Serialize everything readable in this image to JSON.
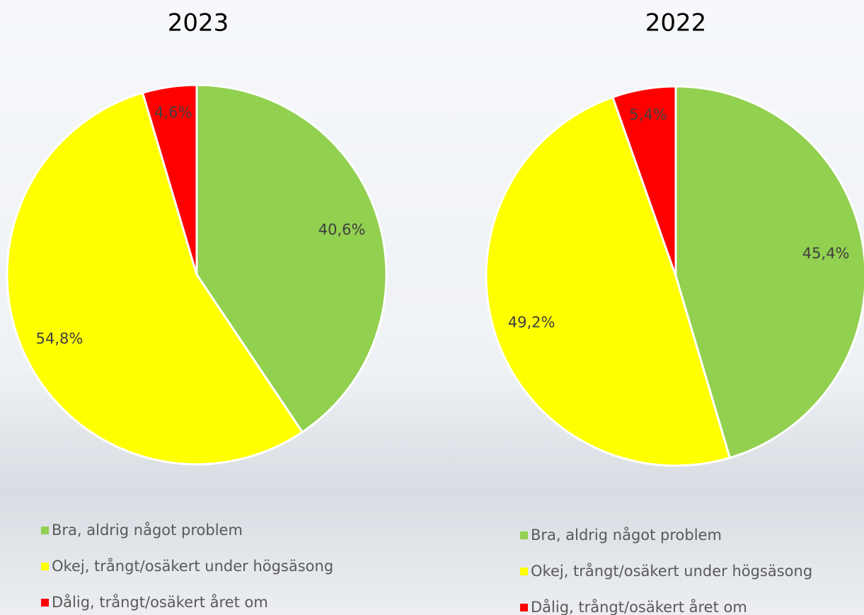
{
  "chart_data": [
    {
      "type": "pie",
      "title": "2023",
      "categories": [
        "Bra, aldrig något problem",
        "Okej, trångt/osäkert under högsäsong",
        "Dålig, trångt/osäkert året om"
      ],
      "values": [
        40.6,
        54.8,
        4.6
      ],
      "value_labels": [
        "40,6%",
        "54,8%",
        "4,6%"
      ],
      "colors": [
        "#92d050",
        "#ffff00",
        "#ff0000"
      ]
    },
    {
      "type": "pie",
      "title": "2022",
      "categories": [
        "Bra, aldrig något problem",
        "Okej, trångt/osäkert under högsäsong",
        "Dålig, trångt/osäkert året om"
      ],
      "values": [
        45.4,
        49.2,
        5.4
      ],
      "value_labels": [
        "45,4%",
        "49,2%",
        "5,4%"
      ],
      "colors": [
        "#92d050",
        "#ffff00",
        "#ff0000"
      ]
    }
  ]
}
